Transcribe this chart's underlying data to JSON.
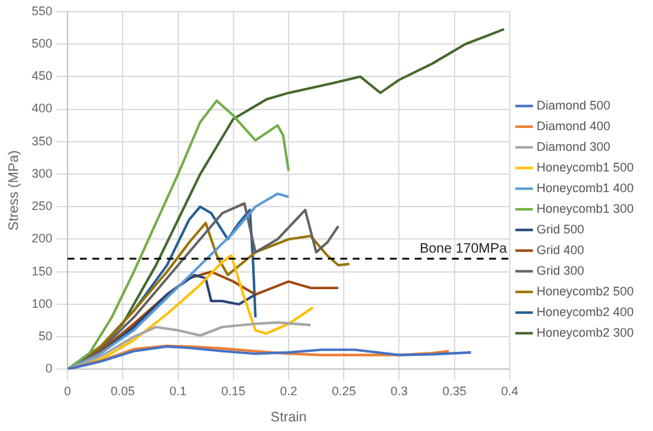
{
  "chart_data": {
    "type": "line",
    "xlabel": "Strain",
    "ylabel": "Stress (MPa)",
    "xlim": [
      0,
      0.4
    ],
    "xticks": [
      0,
      0.05,
      0.1,
      0.15,
      0.2,
      0.25,
      0.3,
      0.35,
      0.4
    ],
    "ylim": [
      0,
      550
    ],
    "yticks": [
      0,
      50,
      100,
      150,
      200,
      250,
      300,
      350,
      400,
      450,
      500,
      550
    ],
    "grid": true,
    "legend": "right",
    "marker": "none",
    "line_style": "solid",
    "ref_lines": [
      {
        "axis": "y",
        "value": 170,
        "label": "Bone 170MPa",
        "color": "#000000",
        "line_style": "dashed"
      }
    ],
    "series": [
      {
        "name": "Diamond 500",
        "color": "#4472c4",
        "x": [
          0,
          0.03,
          0.06,
          0.09,
          0.11,
          0.14,
          0.17,
          0.2,
          0.23,
          0.26,
          0.3,
          0.33,
          0.365
        ],
        "values": [
          0,
          12,
          28,
          35,
          33,
          28,
          24,
          26,
          30,
          30,
          22,
          23,
          26
        ]
      },
      {
        "name": "Diamond 400",
        "color": "#ed7d31",
        "x": [
          0,
          0.03,
          0.06,
          0.09,
          0.11,
          0.14,
          0.17,
          0.2,
          0.23,
          0.26,
          0.3,
          0.33,
          0.345
        ],
        "values": [
          0,
          13,
          31,
          36,
          35,
          32,
          28,
          24,
          22,
          22,
          22,
          25,
          28
        ]
      },
      {
        "name": "Diamond 300",
        "color": "#a5a5a5",
        "x": [
          0,
          0.03,
          0.06,
          0.08,
          0.1,
          0.12,
          0.14,
          0.17,
          0.19,
          0.22
        ],
        "values": [
          0,
          20,
          50,
          65,
          60,
          52,
          65,
          70,
          72,
          68
        ]
      },
      {
        "name": "Honeycomb1 500",
        "color": "#ffc000",
        "x": [
          0,
          0.03,
          0.06,
          0.09,
          0.12,
          0.14,
          0.148,
          0.16,
          0.17,
          0.18,
          0.2,
          0.222
        ],
        "values": [
          0,
          15,
          45,
          85,
          130,
          165,
          175,
          110,
          60,
          55,
          70,
          95
        ]
      },
      {
        "name": "Honeycomb1 400",
        "color": "#5b9bd5",
        "x": [
          0,
          0.03,
          0.06,
          0.09,
          0.12,
          0.15,
          0.17,
          0.19,
          0.2
        ],
        "values": [
          0,
          25,
          60,
          110,
          160,
          210,
          250,
          270,
          265
        ]
      },
      {
        "name": "Honeycomb1 300",
        "color": "#70ad47",
        "x": [
          0,
          0.02,
          0.04,
          0.06,
          0.08,
          0.1,
          0.12,
          0.135,
          0.15,
          0.17,
          0.19,
          0.195,
          0.2
        ],
        "values": [
          0,
          25,
          80,
          150,
          225,
          300,
          380,
          413,
          390,
          352,
          375,
          360,
          305
        ]
      },
      {
        "name": "Grid 500",
        "color": "#264478",
        "x": [
          0,
          0.03,
          0.06,
          0.09,
          0.115,
          0.125,
          0.13,
          0.14,
          0.155,
          0.17
        ],
        "values": [
          0,
          25,
          65,
          115,
          145,
          140,
          105,
          105,
          100,
          115
        ]
      },
      {
        "name": "Grid 400",
        "color": "#9e480e",
        "x": [
          0,
          0.03,
          0.06,
          0.09,
          0.11,
          0.13,
          0.15,
          0.17,
          0.2,
          0.22,
          0.245
        ],
        "values": [
          0,
          28,
          70,
          115,
          140,
          150,
          135,
          115,
          135,
          125,
          125
        ]
      },
      {
        "name": "Grid 300",
        "color": "#636363",
        "x": [
          0,
          0.03,
          0.06,
          0.09,
          0.12,
          0.14,
          0.16,
          0.17,
          0.19,
          0.215,
          0.225,
          0.235,
          0.245
        ],
        "values": [
          0,
          30,
          80,
          140,
          200,
          240,
          255,
          180,
          200,
          245,
          180,
          195,
          220
        ]
      },
      {
        "name": "Honeycomb2 500",
        "color": "#997300",
        "x": [
          0,
          0.03,
          0.06,
          0.09,
          0.11,
          0.125,
          0.135,
          0.145,
          0.17,
          0.2,
          0.22,
          0.235,
          0.245,
          0.255
        ],
        "values": [
          0,
          35,
          90,
          150,
          195,
          225,
          175,
          145,
          180,
          200,
          205,
          175,
          160,
          162
        ]
      },
      {
        "name": "Honeycomb2 400",
        "color": "#255e91",
        "x": [
          0,
          0.03,
          0.06,
          0.09,
          0.11,
          0.12,
          0.13,
          0.145,
          0.155,
          0.165,
          0.168,
          0.17
        ],
        "values": [
          0,
          35,
          90,
          160,
          230,
          250,
          240,
          200,
          225,
          245,
          160,
          80
        ]
      },
      {
        "name": "Honeycomb2 300",
        "color": "#43682b",
        "x": [
          0,
          0.02,
          0.05,
          0.08,
          0.1,
          0.12,
          0.15,
          0.18,
          0.2,
          0.24,
          0.265,
          0.272,
          0.283,
          0.3,
          0.33,
          0.36,
          0.395
        ],
        "values": [
          0,
          15,
          70,
          160,
          230,
          300,
          385,
          415,
          425,
          440,
          450,
          440,
          425,
          445,
          470,
          500,
          523
        ]
      }
    ]
  }
}
